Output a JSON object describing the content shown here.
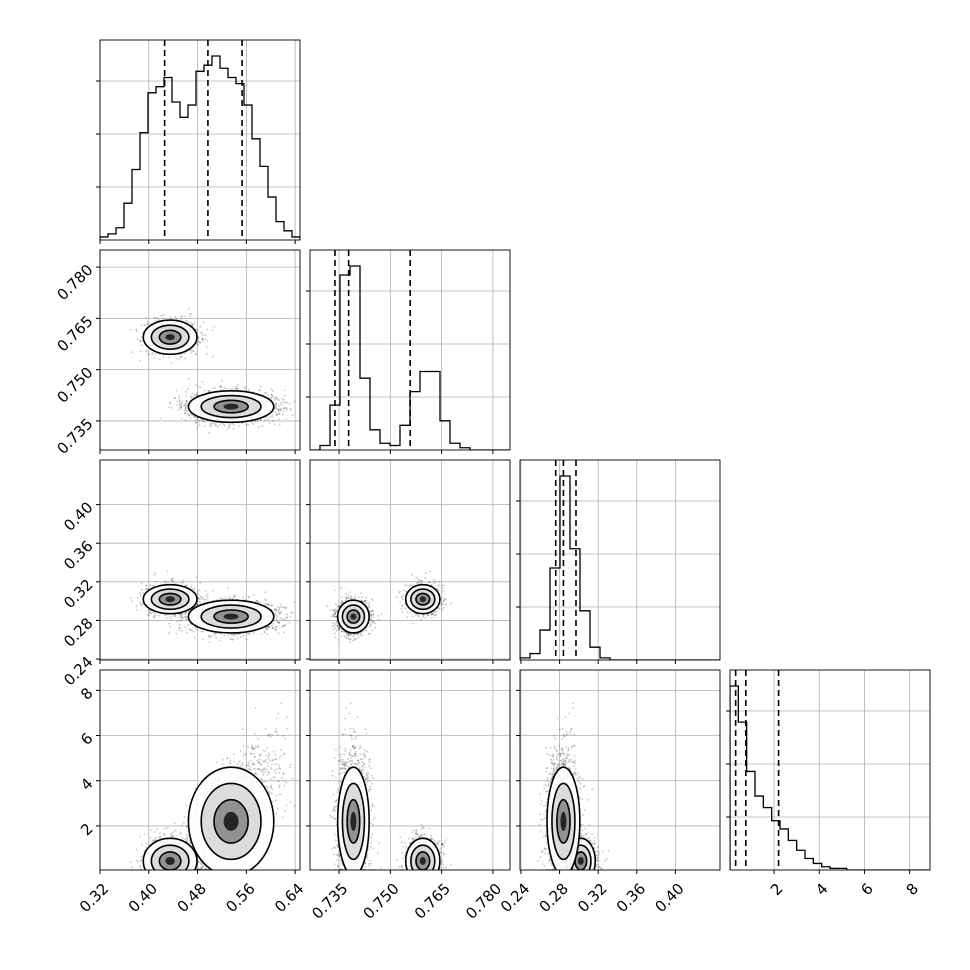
{
  "chart_data": {
    "type": "corner",
    "params": [
      {
        "id": "p0",
        "ticks": [
          0.32,
          0.4,
          0.48,
          0.56,
          0.64
        ],
        "tick_labels": [
          "0.32",
          "0.40",
          "0.48",
          "0.56",
          "0.64"
        ],
        "range": [
          0.32,
          0.648
        ],
        "quantiles": [
          0.426,
          0.497,
          0.553
        ],
        "hist": [
          1,
          2,
          4,
          12,
          23,
          35,
          48,
          50,
          53,
          45,
          40,
          44,
          55,
          57,
          60,
          56,
          53,
          51,
          44,
          33,
          24,
          14,
          6,
          3,
          1
        ]
      },
      {
        "id": "p1",
        "ticks": [
          0.735,
          0.75,
          0.765,
          0.78
        ],
        "tick_labels": [
          "0.735",
          "0.750",
          "0.765",
          "0.780"
        ],
        "range": [
          0.7265,
          0.785
        ],
        "quantiles": [
          0.7338,
          0.7378,
          0.7558
        ],
        "hist": [
          0,
          2,
          20,
          78,
          82,
          32,
          9,
          3,
          2,
          11,
          26,
          35,
          35,
          13,
          3,
          1,
          0,
          0,
          0,
          0
        ]
      },
      {
        "id": "p2",
        "ticks": [
          0.24,
          0.28,
          0.32,
          0.36,
          0.4
        ],
        "tick_labels": [
          "0.24",
          "0.28",
          "0.32",
          "0.36",
          "0.40"
        ],
        "range": [
          0.239,
          0.4462
        ],
        "quantiles": [
          0.276,
          0.284,
          0.297
        ],
        "hist": [
          1,
          3,
          14,
          43,
          86,
          52,
          23,
          6,
          1,
          0,
          0,
          0,
          0,
          0,
          0,
          0,
          0,
          0,
          0,
          0
        ]
      },
      {
        "id": "p3",
        "ticks": [
          2,
          4,
          6,
          8
        ],
        "tick_labels": [
          "2",
          "4",
          "6",
          "8"
        ],
        "range": [
          0.05,
          8.9
        ],
        "quantiles": [
          0.3,
          0.75,
          2.2
        ],
        "hist": [
          112,
          90,
          60,
          45,
          38,
          30,
          25,
          18,
          12,
          7,
          4,
          2,
          1,
          1,
          0,
          0,
          0,
          0,
          0,
          0,
          0,
          0,
          0,
          0
        ]
      }
    ],
    "samples": {
      "clusters": [
        {
          "weight": 0.36,
          "mean": [
            0.435,
            0.7595,
            0.302,
            0.45
          ],
          "std": [
            0.022,
            0.0025,
            0.0075,
            0.5
          ]
        },
        {
          "weight": 0.64,
          "mean": [
            0.535,
            0.7392,
            0.284,
            2.2
          ],
          "std": [
            0.035,
            0.0023,
            0.0085,
            1.2
          ]
        }
      ]
    },
    "grid": true,
    "quantile_style": "dashed"
  }
}
